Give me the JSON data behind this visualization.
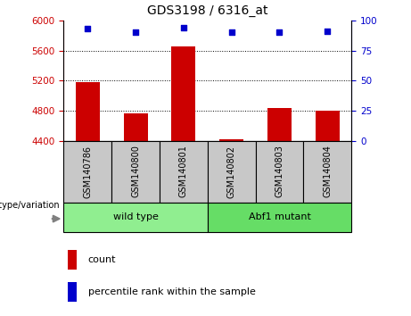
{
  "title": "GDS3198 / 6316_at",
  "samples": [
    "GSM140786",
    "GSM140800",
    "GSM140801",
    "GSM140802",
    "GSM140803",
    "GSM140804"
  ],
  "counts": [
    5175,
    4760,
    5660,
    4420,
    4840,
    4800
  ],
  "percentile_ranks": [
    93,
    90,
    94,
    90,
    90,
    91
  ],
  "ylim_left": [
    4400,
    6000
  ],
  "ylim_right": [
    0,
    100
  ],
  "yticks_left": [
    4400,
    4800,
    5200,
    5600,
    6000
  ],
  "yticks_right": [
    0,
    25,
    50,
    75,
    100
  ],
  "bar_color": "#CC0000",
  "dot_color": "#0000CC",
  "left_axis_color": "#CC0000",
  "right_axis_color": "#0000CC",
  "bar_width": 0.5,
  "genotype_label": "genotype/variation",
  "legend_count": "count",
  "legend_percentile": "percentile rank within the sample",
  "wt_color": "#90EE90",
  "mutant_color": "#66DD66",
  "gray_color": "#C8C8C8"
}
